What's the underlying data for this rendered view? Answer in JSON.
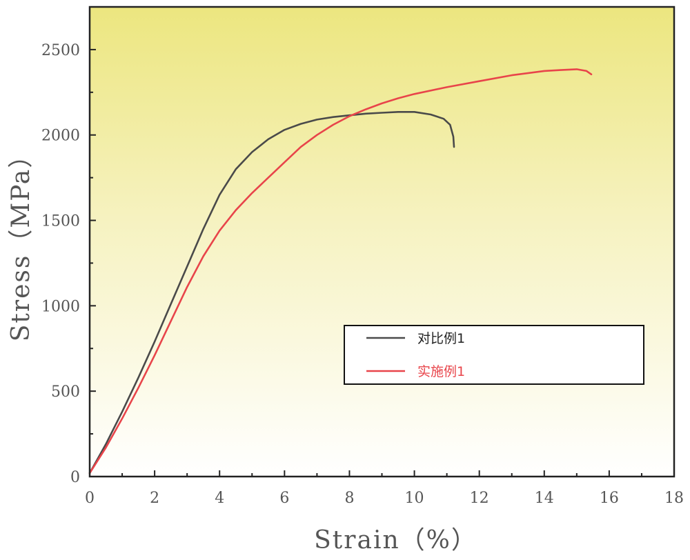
{
  "chart_data": {
    "type": "line",
    "xlabel": "Strain（%）",
    "ylabel": "Stress（MPa）",
    "xlim": [
      0,
      18
    ],
    "ylim": [
      0,
      2750
    ],
    "x_ticks": [
      "0",
      "2",
      "4",
      "6",
      "8",
      "10",
      "12",
      "14",
      "16",
      "18"
    ],
    "y_ticks": [
      "0",
      "500",
      "1000",
      "1500",
      "2000",
      "2500"
    ],
    "legend_position": "center-right",
    "background": "gradient yellow (top) to white (bottom)",
    "series": [
      {
        "name": "对比例1",
        "color": "#4a4a4a",
        "points": [
          [
            0,
            20
          ],
          [
            0.5,
            190
          ],
          [
            1,
            380
          ],
          [
            1.5,
            580
          ],
          [
            2,
            790
          ],
          [
            2.5,
            1010
          ],
          [
            3,
            1230
          ],
          [
            3.5,
            1450
          ],
          [
            4,
            1650
          ],
          [
            4.5,
            1800
          ],
          [
            5,
            1900
          ],
          [
            5.5,
            1975
          ],
          [
            6,
            2030
          ],
          [
            6.5,
            2065
          ],
          [
            7,
            2090
          ],
          [
            7.5,
            2105
          ],
          [
            8,
            2115
          ],
          [
            8.5,
            2125
          ],
          [
            9,
            2130
          ],
          [
            9.5,
            2135
          ],
          [
            10,
            2135
          ],
          [
            10.5,
            2120
          ],
          [
            10.9,
            2095
          ],
          [
            11.1,
            2060
          ],
          [
            11.2,
            1990
          ],
          [
            11.22,
            1930
          ]
        ]
      },
      {
        "name": "实施例1",
        "color": "#e8444a",
        "points": [
          [
            0,
            20
          ],
          [
            0.5,
            170
          ],
          [
            1,
            340
          ],
          [
            1.5,
            520
          ],
          [
            2,
            710
          ],
          [
            2.5,
            910
          ],
          [
            3,
            1110
          ],
          [
            3.5,
            1290
          ],
          [
            4,
            1440
          ],
          [
            4.5,
            1560
          ],
          [
            5,
            1660
          ],
          [
            5.5,
            1750
          ],
          [
            6,
            1840
          ],
          [
            6.5,
            1930
          ],
          [
            7,
            2000
          ],
          [
            7.5,
            2060
          ],
          [
            8,
            2110
          ],
          [
            8.5,
            2150
          ],
          [
            9,
            2185
          ],
          [
            9.5,
            2215
          ],
          [
            10,
            2240
          ],
          [
            11,
            2280
          ],
          [
            12,
            2315
          ],
          [
            13,
            2350
          ],
          [
            14,
            2375
          ],
          [
            14.5,
            2380
          ],
          [
            15,
            2385
          ],
          [
            15.3,
            2375
          ],
          [
            15.45,
            2355
          ]
        ]
      }
    ]
  }
}
